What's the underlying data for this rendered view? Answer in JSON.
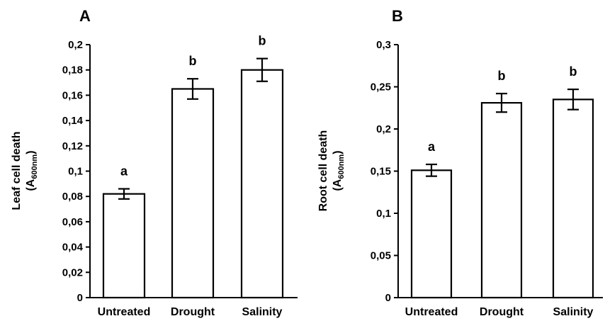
{
  "chart_data": [
    {
      "type": "bar",
      "panel": "A",
      "categories": [
        "Untreated",
        "Drought",
        "Salinity"
      ],
      "values": [
        0.082,
        0.165,
        0.18
      ],
      "errors": [
        0.004,
        0.008,
        0.009
      ],
      "significance": [
        "a",
        "b",
        "b"
      ],
      "ylabel_main": "Leaf cell death",
      "ylabel_unit": {
        "base": "(A",
        "sub": "600nm",
        "end": ")"
      },
      "ylim": [
        0,
        0.2
      ],
      "yticks": [
        0,
        0.02,
        0.04,
        0.06,
        0.08,
        0.1,
        0.12,
        0.14,
        0.16,
        0.18,
        0.2
      ],
      "ytick_labels": [
        "0",
        "0,02",
        "0,04",
        "0,06",
        "0,08",
        "0,1",
        "0,12",
        "0,14",
        "0,16",
        "0,18",
        "0,2"
      ],
      "bar_fill": "#ffffff",
      "bar_stroke": "#000000",
      "grid": false
    },
    {
      "type": "bar",
      "panel": "B",
      "categories": [
        "Untreated",
        "Drought",
        "Salinity"
      ],
      "values": [
        0.151,
        0.231,
        0.235
      ],
      "errors": [
        0.007,
        0.011,
        0.012
      ],
      "significance": [
        "a",
        "b",
        "b"
      ],
      "ylabel_main": "Root cell death",
      "ylabel_unit": {
        "base": "(A",
        "sub": "600nm",
        "end": ")"
      },
      "ylim": [
        0,
        0.3
      ],
      "yticks": [
        0,
        0.05,
        0.1,
        0.15,
        0.2,
        0.25,
        0.3
      ],
      "ytick_labels": [
        "0",
        "0,05",
        "0,1",
        "0,15",
        "0,2",
        "0,25",
        "0,3"
      ],
      "bar_fill": "#ffffff",
      "bar_stroke": "#000000",
      "grid": false
    }
  ]
}
